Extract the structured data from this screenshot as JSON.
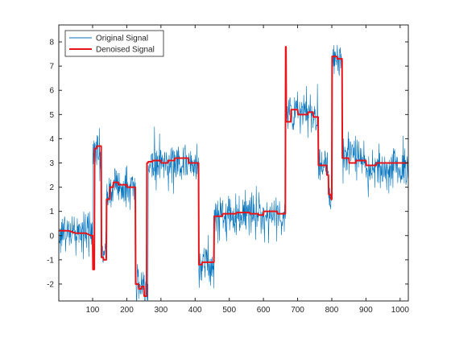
{
  "chart_data": {
    "type": "line",
    "title": "",
    "xlabel": "",
    "ylabel": "",
    "xlim": [
      1,
      1024
    ],
    "ylim": [
      -2.7,
      8.7
    ],
    "xticks": [
      100,
      200,
      300,
      400,
      500,
      600,
      700,
      800,
      900,
      1000
    ],
    "yticks": [
      -2,
      -1,
      0,
      1,
      2,
      3,
      4,
      5,
      6,
      7,
      8
    ],
    "grid": false,
    "legend_position": "top-left",
    "series": [
      {
        "name": "Original Signal",
        "color": "#0072BD",
        "style": "noisy",
        "noise_std": 0.45,
        "x": [
          1,
          100,
          101,
          112,
          113,
          125,
          126,
          140,
          141,
          160,
          161,
          175,
          176,
          225,
          226,
          250,
          251,
          262,
          263,
          310,
          311,
          410,
          411,
          455,
          456,
          520,
          521,
          585,
          586,
          665,
          666,
          700,
          701,
          760,
          761,
          790,
          791,
          800,
          801,
          830,
          831,
          870,
          871,
          900,
          901,
          1024
        ],
        "y": [
          0.15,
          0.1,
          3.6,
          3.6,
          3.3,
          3.3,
          -0.8,
          -0.8,
          1.8,
          1.8,
          2.2,
          2.2,
          2.0,
          2.0,
          -2.1,
          -2.1,
          -2.4,
          -2.4,
          3.05,
          3.05,
          3.0,
          3.0,
          -1.2,
          -1.2,
          0.8,
          0.8,
          0.9,
          0.9,
          0.85,
          0.85,
          5.1,
          5.1,
          5.0,
          5.0,
          3.0,
          3.0,
          1.8,
          1.8,
          7.4,
          7.4,
          3.3,
          3.3,
          3.1,
          3.1,
          2.8,
          2.8
        ]
      },
      {
        "name": "Denoised Signal",
        "color": "#E8141A",
        "style": "step",
        "x": [
          1,
          30,
          50,
          80,
          95,
          100,
          101,
          105,
          106,
          112,
          113,
          125,
          126,
          131,
          132,
          140,
          141,
          150,
          151,
          160,
          161,
          175,
          176,
          200,
          201,
          225,
          226,
          234,
          235,
          242,
          243,
          250,
          251,
          258,
          259,
          262,
          263,
          275,
          276,
          300,
          301,
          320,
          321,
          340,
          341,
          380,
          381,
          410,
          411,
          420,
          421,
          455,
          456,
          480,
          481,
          520,
          521,
          560,
          561,
          585,
          586,
          600,
          601,
          640,
          641,
          664,
          665,
          666,
          667,
          680,
          681,
          700,
          701,
          730,
          731,
          745,
          746,
          760,
          761,
          785,
          786,
          790,
          791,
          797,
          798,
          800,
          801,
          815,
          816,
          830,
          831,
          850,
          851,
          870,
          871,
          900,
          901,
          930,
          931,
          1024
        ],
        "y": [
          0.2,
          0.2,
          0.1,
          0.1,
          0.0,
          0.0,
          -1.4,
          -1.4,
          3.6,
          3.6,
          3.7,
          3.7,
          -0.9,
          -0.9,
          -1.0,
          -1.0,
          1.5,
          1.5,
          2.0,
          2.0,
          2.2,
          2.2,
          2.1,
          2.1,
          2.0,
          2.0,
          -2.0,
          -2.0,
          -2.2,
          -2.2,
          -2.1,
          -2.1,
          -2.5,
          -2.5,
          3.0,
          3.0,
          3.05,
          3.05,
          3.1,
          3.1,
          3.0,
          3.0,
          3.1,
          3.1,
          3.2,
          3.2,
          3.0,
          3.0,
          -1.2,
          -1.2,
          -1.1,
          -1.1,
          0.8,
          0.8,
          0.9,
          0.9,
          0.95,
          0.95,
          0.9,
          0.9,
          0.85,
          0.85,
          1.0,
          1.0,
          0.9,
          0.9,
          7.8,
          7.8,
          4.7,
          4.7,
          5.2,
          5.2,
          5.0,
          5.0,
          5.1,
          5.1,
          4.9,
          4.9,
          2.9,
          2.9,
          2.5,
          2.5,
          1.7,
          1.7,
          1.5,
          1.5,
          7.4,
          7.4,
          7.3,
          7.3,
          3.2,
          3.2,
          3.0,
          3.0,
          3.1,
          3.1,
          2.9,
          2.9,
          3.0,
          3.0
        ]
      }
    ]
  }
}
